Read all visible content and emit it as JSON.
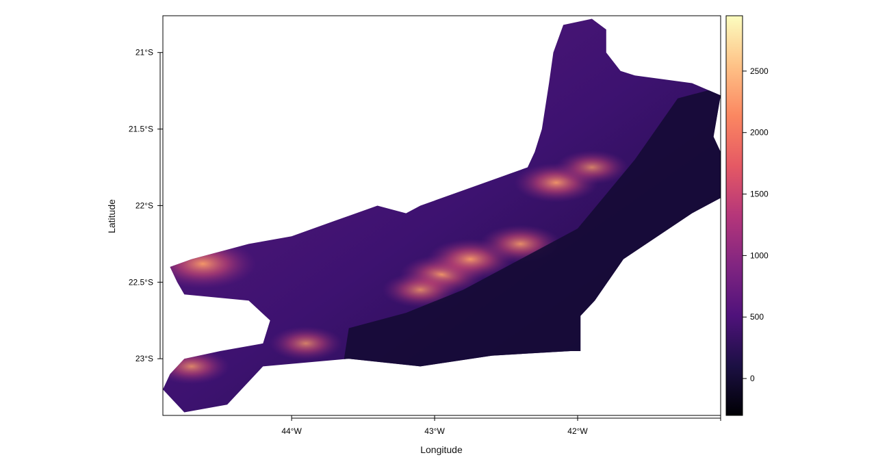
{
  "chart_data": {
    "type": "heatmap",
    "title": "",
    "xlabel": "Longitude",
    "ylabel": "Latitude",
    "xlim": [
      -44.9,
      -41.0
    ],
    "ylim": [
      -23.37,
      -20.76
    ],
    "x_ticks": [
      {
        "value": -44,
        "label": "44°W"
      },
      {
        "value": -43,
        "label": "43°W"
      },
      {
        "value": -42,
        "label": "42°W"
      }
    ],
    "y_ticks": [
      {
        "value": -21.0,
        "label": "21°S"
      },
      {
        "value": -21.5,
        "label": "21.5°S"
      },
      {
        "value": -22.0,
        "label": "22°S"
      },
      {
        "value": -22.5,
        "label": "22.5°S"
      },
      {
        "value": -23.0,
        "label": "23°S"
      }
    ],
    "colorbar": {
      "range": [
        -300,
        2950
      ],
      "ticks": [
        {
          "value": 0,
          "label": "0"
        },
        {
          "value": 500,
          "label": "500"
        },
        {
          "value": 1000,
          "label": "1000"
        },
        {
          "value": 1500,
          "label": "1500"
        },
        {
          "value": 2000,
          "label": "2000"
        },
        {
          "value": 2500,
          "label": "2500"
        }
      ],
      "colormap": [
        "#000004",
        "#1c1044",
        "#4f127b",
        "#812581",
        "#b5367a",
        "#e55964",
        "#fb8761",
        "#fec287",
        "#fcfdbf"
      ]
    },
    "region_outline": [
      [
        -44.9,
        -23.2
      ],
      [
        -44.75,
        -23.35
      ],
      [
        -44.45,
        -23.3
      ],
      [
        -44.2,
        -23.05
      ],
      [
        -43.6,
        -23.0
      ],
      [
        -43.1,
        -23.05
      ],
      [
        -42.6,
        -22.98
      ],
      [
        -42.05,
        -22.95
      ],
      [
        -41.98,
        -22.95
      ],
      [
        -41.98,
        -22.72
      ],
      [
        -41.88,
        -22.62
      ],
      [
        -41.68,
        -22.35
      ],
      [
        -41.2,
        -22.05
      ],
      [
        -41.0,
        -21.95
      ],
      [
        -41.0,
        -21.65
      ],
      [
        -41.05,
        -21.55
      ],
      [
        -41.0,
        -21.28
      ],
      [
        -41.2,
        -21.2
      ],
      [
        -41.6,
        -21.15
      ],
      [
        -41.7,
        -21.12
      ],
      [
        -41.8,
        -21.0
      ],
      [
        -41.8,
        -20.85
      ],
      [
        -41.9,
        -20.78
      ],
      [
        -42.1,
        -20.82
      ],
      [
        -42.17,
        -21.0
      ],
      [
        -42.2,
        -21.2
      ],
      [
        -42.25,
        -21.5
      ],
      [
        -42.3,
        -21.65
      ],
      [
        -42.35,
        -21.75
      ],
      [
        -42.5,
        -21.8
      ],
      [
        -42.8,
        -21.9
      ],
      [
        -43.1,
        -22.0
      ],
      [
        -43.2,
        -22.05
      ],
      [
        -43.4,
        -22.0
      ],
      [
        -43.7,
        -22.1
      ],
      [
        -44.0,
        -22.2
      ],
      [
        -44.3,
        -22.25
      ],
      [
        -44.5,
        -22.3
      ],
      [
        -44.7,
        -22.35
      ],
      [
        -44.85,
        -22.4
      ],
      [
        -44.8,
        -22.5
      ],
      [
        -44.75,
        -22.58
      ],
      [
        -44.3,
        -22.62
      ],
      [
        -44.15,
        -22.75
      ],
      [
        -44.2,
        -22.9
      ],
      [
        -44.5,
        -22.95
      ],
      [
        -44.75,
        -23.0
      ],
      [
        -44.85,
        -23.1
      ]
    ],
    "peaks": [
      {
        "lon": -44.62,
        "lat": -22.38,
        "elevation": 2500
      },
      {
        "lon": -42.95,
        "lat": -22.45,
        "elevation": 1700
      },
      {
        "lon": -42.75,
        "lat": -22.35,
        "elevation": 1800
      },
      {
        "lon": -42.4,
        "lat": -22.25,
        "elevation": 1600
      },
      {
        "lon": -42.15,
        "lat": -21.85,
        "elevation": 1700
      },
      {
        "lon": -41.9,
        "lat": -21.75,
        "elevation": 1300
      },
      {
        "lon": -43.9,
        "lat": -22.9,
        "elevation": 1300
      },
      {
        "lon": -44.7,
        "lat": -23.05,
        "elevation": 1400
      },
      {
        "lon": -43.1,
        "lat": -22.55,
        "elevation": 1400
      }
    ]
  }
}
